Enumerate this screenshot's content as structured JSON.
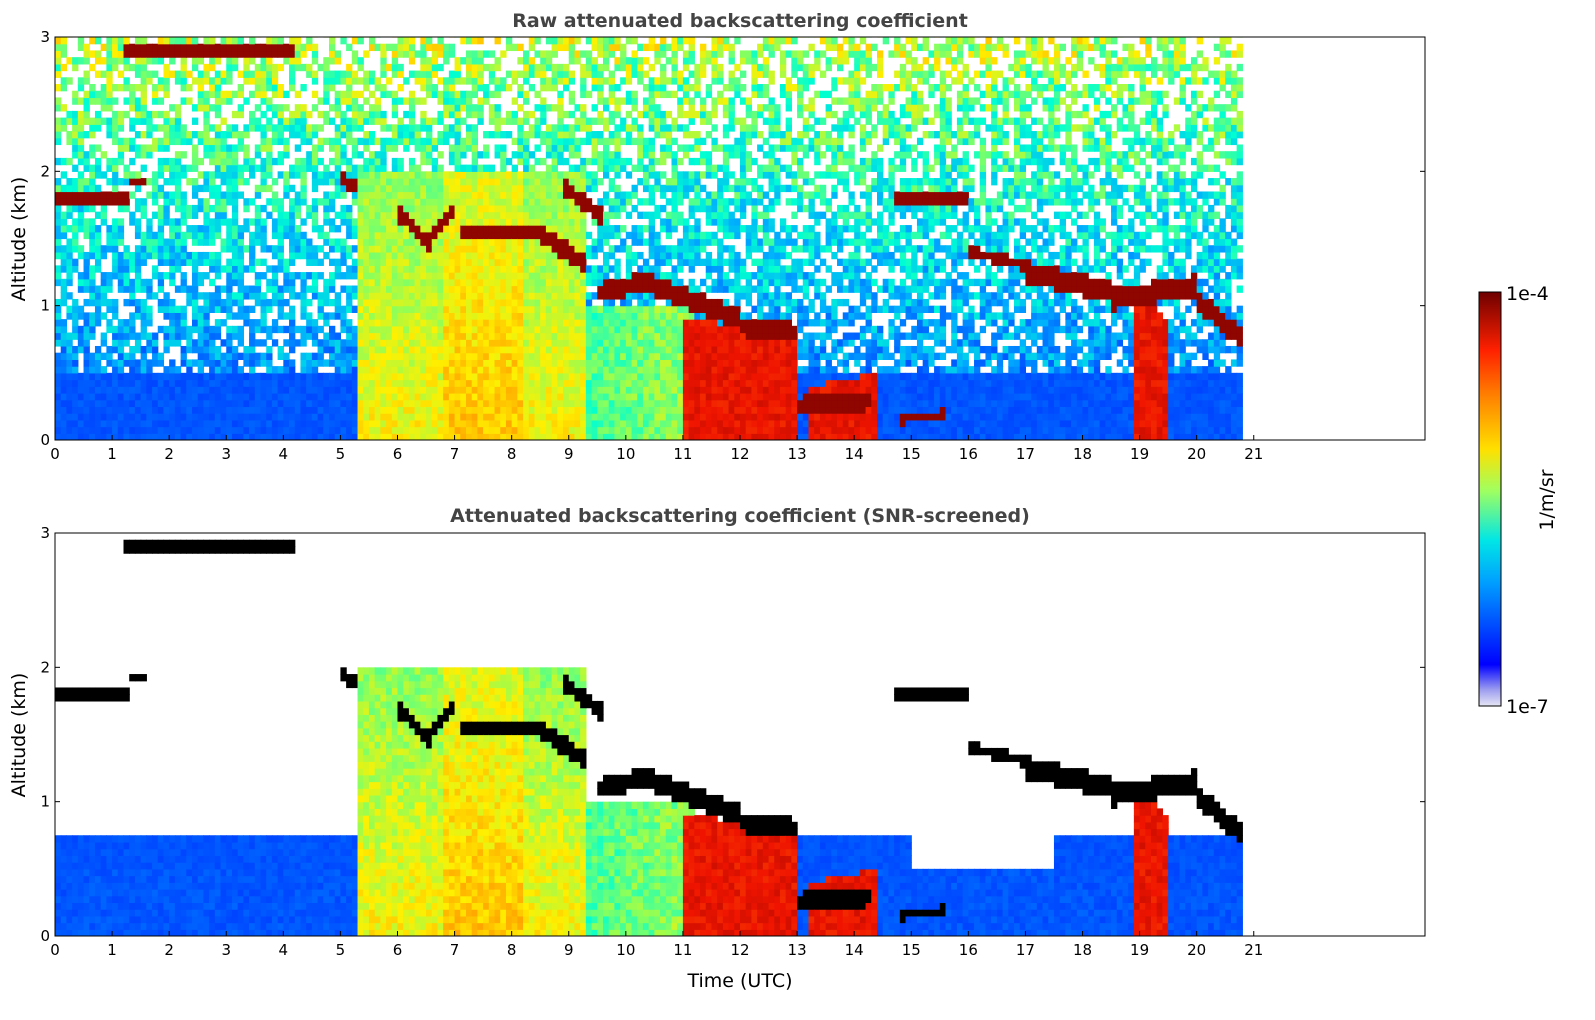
{
  "chart_data": [
    {
      "type": "heatmap",
      "title": "Raw attenuated backscattering coefficient",
      "xlabel": "",
      "ylabel": "Altitude (km)",
      "xlim": [
        0,
        24
      ],
      "ylim": [
        0,
        3
      ],
      "xticks": [
        "0",
        "1",
        "2",
        "3",
        "4",
        "5",
        "6",
        "7",
        "8",
        "9",
        "10",
        "11",
        "12",
        "13",
        "14",
        "15",
        "16",
        "17",
        "18",
        "19",
        "20",
        "21"
      ],
      "yticks": [
        "0",
        "1",
        "2",
        "3"
      ],
      "data_end_time": 20.8,
      "screened": false,
      "features": [
        {
          "x": [
            0,
            1.3
          ],
          "y": [
            1.75,
            1.9
          ],
          "value": "1e-4",
          "desc": "cloud layer"
        },
        {
          "x": [
            1.2,
            4.2
          ],
          "y": [
            2.8,
            3.0
          ],
          "value": "1e-4",
          "desc": "cloud layer"
        },
        {
          "x": [
            5.2,
            9.3
          ],
          "y": [
            0,
            2.0
          ],
          "value": "4e-6",
          "desc": "aerosol / precipitation"
        },
        {
          "x": [
            6.0,
            9.3
          ],
          "y": [
            1.4,
            1.8
          ],
          "value": "1e-4",
          "desc": "cloud base"
        },
        {
          "x": [
            9.4,
            13.0
          ],
          "y": [
            0.8,
            1.7
          ],
          "value": "1e-4",
          "desc": "descending cloud base"
        },
        {
          "x": [
            11.0,
            13.0
          ],
          "y": [
            0,
            0.9
          ],
          "value": "5e-5",
          "desc": "rain"
        },
        {
          "x": [
            13.0,
            14.3
          ],
          "y": [
            0.15,
            0.35
          ],
          "value": "1e-4",
          "desc": "low cloud"
        },
        {
          "x": [
            14.8,
            16.0
          ],
          "y": [
            1.7,
            1.9
          ],
          "value": "1e-4",
          "desc": "cloud layer"
        },
        {
          "x": [
            17.0,
            20.8
          ],
          "y": [
            0.8,
            1.35
          ],
          "value": "1e-4",
          "desc": "cloud layer"
        },
        {
          "x": [
            18.9,
            19.5
          ],
          "y": [
            0,
            1.1
          ],
          "value": "5e-5",
          "desc": "precipitation"
        }
      ]
    },
    {
      "type": "heatmap",
      "title": "Attenuated backscattering coefficient (SNR-screened)",
      "xlabel": "Time (UTC)",
      "ylabel": "Altitude (km)",
      "xlim": [
        0,
        24
      ],
      "ylim": [
        0,
        3
      ],
      "xticks": [
        "0",
        "1",
        "2",
        "3",
        "4",
        "5",
        "6",
        "7",
        "8",
        "9",
        "10",
        "11",
        "12",
        "13",
        "14",
        "15",
        "16",
        "17",
        "18",
        "19",
        "20",
        "21"
      ],
      "yticks": [
        "0",
        "1",
        "2",
        "3"
      ],
      "data_end_time": 20.8,
      "screened": true
    }
  ],
  "colorbar": {
    "label": "1/m/sr",
    "max_label": "1e-4",
    "min_label": "1e-7",
    "colors": [
      "#e6e6f5",
      "#9b9bf0",
      "#3c3cff",
      "#0000ff",
      "#0050ff",
      "#00a0ff",
      "#00e6e6",
      "#40ffb0",
      "#a0ff60",
      "#e6ff20",
      "#ffe000",
      "#ff9000",
      "#ff4000",
      "#e00000",
      "#9b0000",
      "#6e0000"
    ]
  }
}
